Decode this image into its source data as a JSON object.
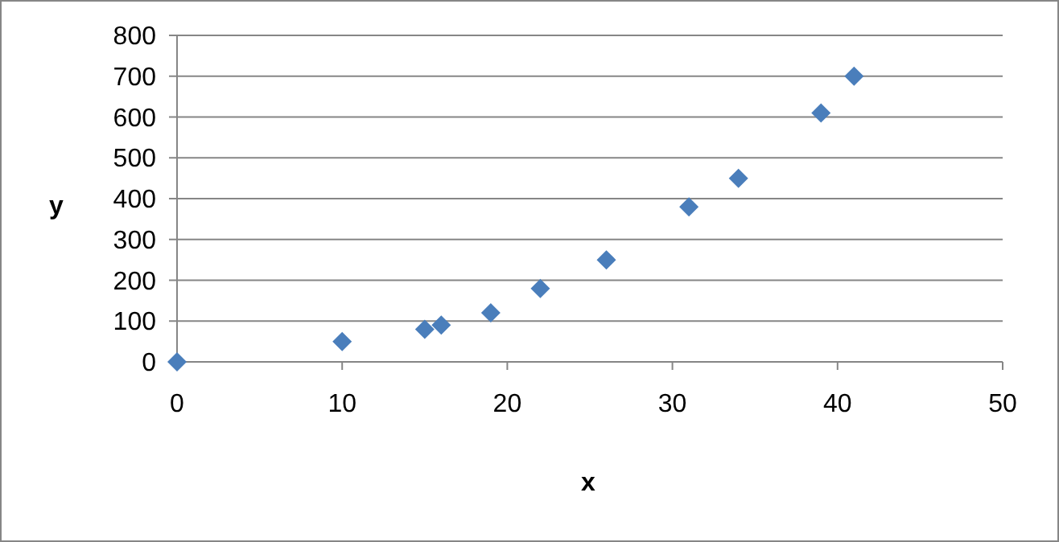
{
  "chart_data": {
    "type": "scatter",
    "xlabel": "x",
    "ylabel": "y",
    "x": [
      0,
      10,
      15,
      16,
      19,
      22,
      26,
      31,
      34,
      39,
      41
    ],
    "values": [
      0,
      50,
      80,
      90,
      120,
      180,
      250,
      380,
      450,
      610,
      700
    ],
    "color": "#4a7ebb",
    "marker": "diamond",
    "xlim": [
      0,
      50
    ],
    "xticks": [
      0,
      10,
      20,
      30,
      40,
      50
    ],
    "ylim": [
      0,
      800
    ],
    "yticks": [
      0,
      100,
      200,
      300,
      400,
      500,
      600,
      700,
      800
    ],
    "grid": "y"
  }
}
